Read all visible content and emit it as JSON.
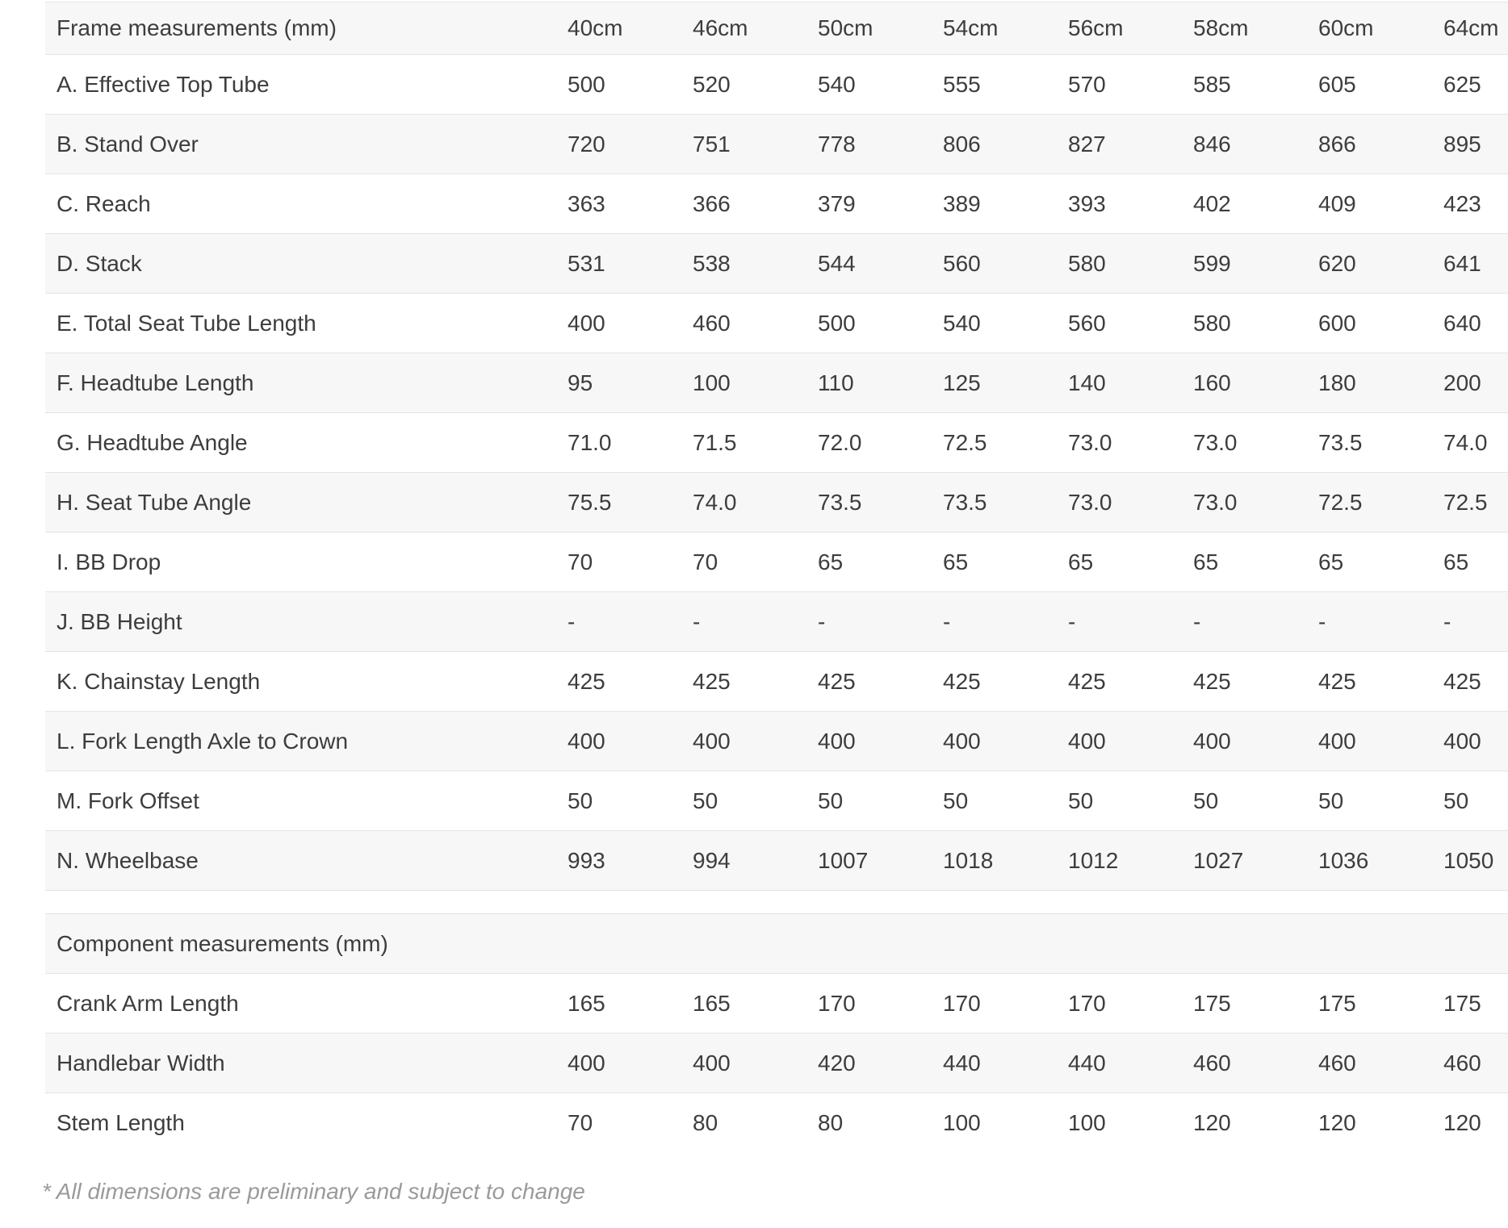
{
  "page": {
    "footnote": "* All dimensions are preliminary and subject to change"
  },
  "geometry_table": {
    "columns": [
      "40cm",
      "46cm",
      "50cm",
      "54cm",
      "56cm",
      "58cm",
      "60cm",
      "64cm"
    ],
    "sections": [
      {
        "header": "Frame measurements (mm)",
        "show_size_columns": true,
        "rows": [
          {
            "label": "A. Effective Top Tube",
            "values": [
              "500",
              "520",
              "540",
              "555",
              "570",
              "585",
              "605",
              "625"
            ]
          },
          {
            "label": "B. Stand Over",
            "values": [
              "720",
              "751",
              "778",
              "806",
              "827",
              "846",
              "866",
              "895"
            ]
          },
          {
            "label": "C. Reach",
            "values": [
              "363",
              "366",
              "379",
              "389",
              "393",
              "402",
              "409",
              "423"
            ]
          },
          {
            "label": "D. Stack",
            "values": [
              "531",
              "538",
              "544",
              "560",
              "580",
              "599",
              "620",
              "641"
            ]
          },
          {
            "label": "E. Total Seat Tube Length",
            "values": [
              "400",
              "460",
              "500",
              "540",
              "560",
              "580",
              "600",
              "640"
            ]
          },
          {
            "label": "F. Headtube Length",
            "values": [
              "95",
              "100",
              "110",
              "125",
              "140",
              "160",
              "180",
              "200"
            ]
          },
          {
            "label": "G. Headtube Angle",
            "values": [
              "71.0",
              "71.5",
              "72.0",
              "72.5",
              "73.0",
              "73.0",
              "73.5",
              "74.0"
            ]
          },
          {
            "label": "H. Seat Tube Angle",
            "values": [
              "75.5",
              "74.0",
              "73.5",
              "73.5",
              "73.0",
              "73.0",
              "72.5",
              "72.5"
            ]
          },
          {
            "label": "I. BB Drop",
            "values": [
              "70",
              "70",
              "65",
              "65",
              "65",
              "65",
              "65",
              "65"
            ]
          },
          {
            "label": "J. BB Height",
            "values": [
              "-",
              "-",
              "-",
              "-",
              "-",
              "-",
              "-",
              "-"
            ]
          },
          {
            "label": "K. Chainstay Length",
            "values": [
              "425",
              "425",
              "425",
              "425",
              "425",
              "425",
              "425",
              "425"
            ]
          },
          {
            "label": "L. Fork Length Axle to Crown",
            "values": [
              "400",
              "400",
              "400",
              "400",
              "400",
              "400",
              "400",
              "400"
            ]
          },
          {
            "label": "M. Fork Offset",
            "values": [
              "50",
              "50",
              "50",
              "50",
              "50",
              "50",
              "50",
              "50"
            ]
          },
          {
            "label": "N. Wheelbase",
            "values": [
              "993",
              "994",
              "1007",
              "1018",
              "1012",
              "1027",
              "1036",
              "1050"
            ]
          }
        ]
      },
      {
        "header": "Component measurements (mm)",
        "show_size_columns": false,
        "rows": [
          {
            "label": "Crank Arm Length",
            "values": [
              "165",
              "165",
              "170",
              "170",
              "170",
              "175",
              "175",
              "175"
            ]
          },
          {
            "label": "Handlebar Width",
            "values": [
              "400",
              "400",
              "420",
              "440",
              "440",
              "460",
              "460",
              "460"
            ]
          },
          {
            "label": "Stem Length",
            "values": [
              "70",
              "80",
              "80",
              "100",
              "100",
              "120",
              "120",
              "120"
            ]
          }
        ]
      }
    ]
  }
}
